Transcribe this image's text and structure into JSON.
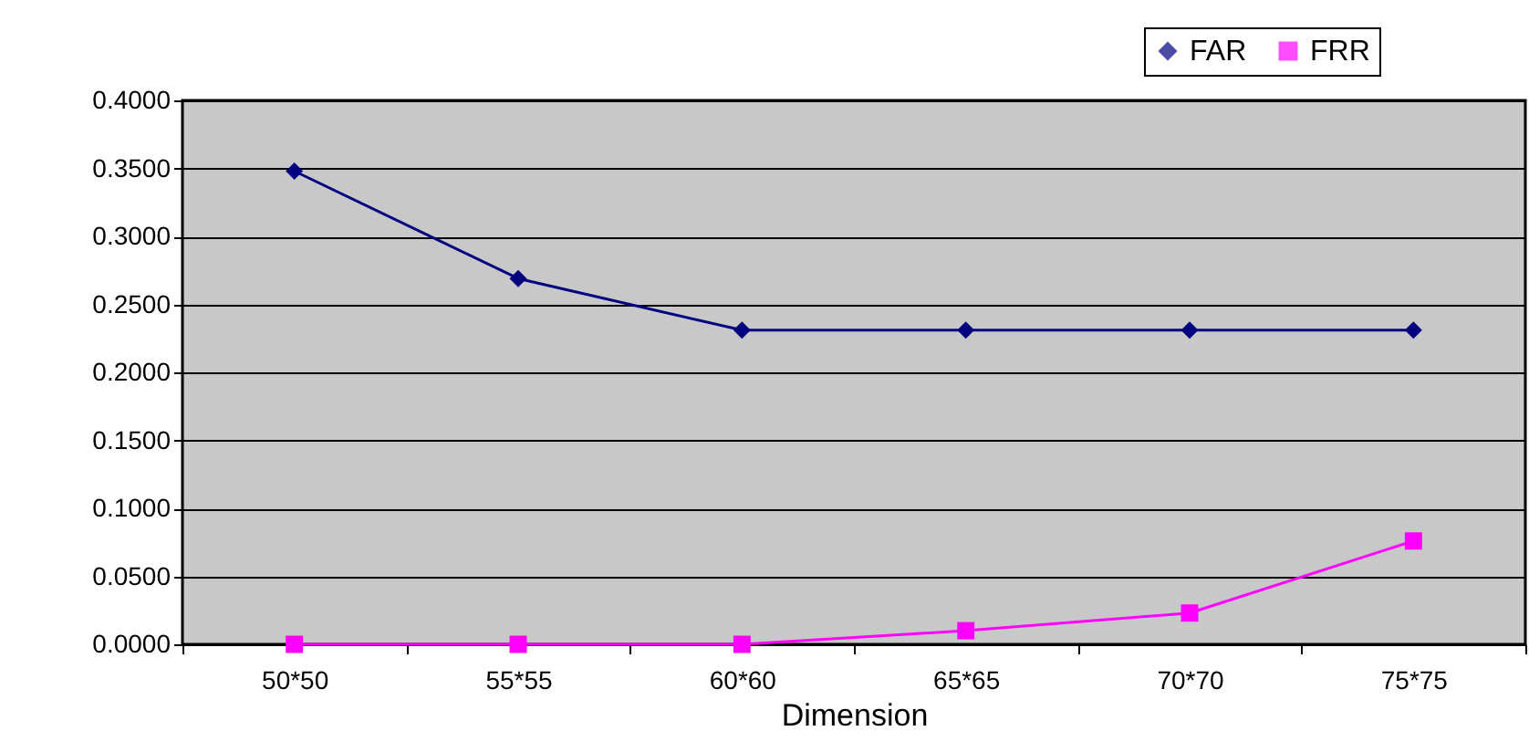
{
  "chart_data": {
    "type": "line",
    "xlabel": "Dimension",
    "categories": [
      "50*50",
      "55*55",
      "60*60",
      "65*65",
      "70*70",
      "75*75"
    ],
    "series": [
      {
        "name": "FAR",
        "color": "#000080",
        "marker": "diamond",
        "values": [
          0.348,
          0.269,
          0.231,
          0.231,
          0.231,
          0.231
        ]
      },
      {
        "name": "FRR",
        "color": "#ff00ff",
        "marker": "square",
        "values": [
          0,
          0,
          0,
          0.01,
          0.023,
          0.076
        ]
      }
    ],
    "ylim": [
      0,
      0.4
    ],
    "yticks": [
      {
        "value": 0,
        "label": "0.0000"
      },
      {
        "value": 0.05,
        "label": "0.0500"
      },
      {
        "value": 0.1,
        "label": "0.1000"
      },
      {
        "value": 0.15,
        "label": "0.1500"
      },
      {
        "value": 0.2,
        "label": "0.2000"
      },
      {
        "value": 0.25,
        "label": "0.2500"
      },
      {
        "value": 0.3,
        "label": "0.3000"
      },
      {
        "value": 0.35,
        "label": "0.3500"
      },
      {
        "value": 0.4,
        "label": "0.4000"
      }
    ],
    "grid": "y",
    "legend": "top right",
    "line_style": "solid"
  }
}
